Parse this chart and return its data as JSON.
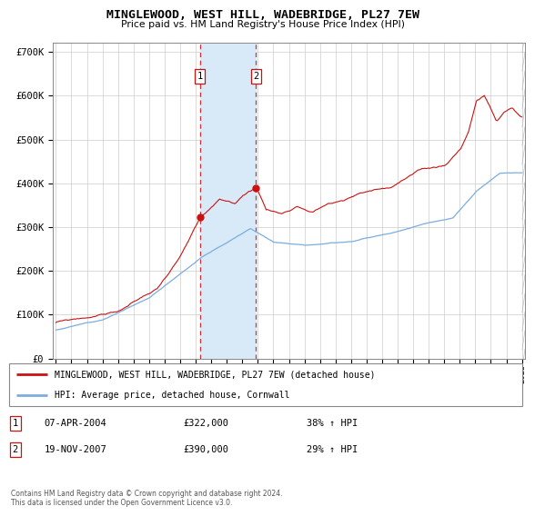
{
  "title": "MINGLEWOOD, WEST HILL, WADEBRIDGE, PL27 7EW",
  "subtitle": "Price paid vs. HM Land Registry's House Price Index (HPI)",
  "legend_line1": "MINGLEWOOD, WEST HILL, WADEBRIDGE, PL27 7EW (detached house)",
  "legend_line2": "HPI: Average price, detached house, Cornwall",
  "sale1_label": "1",
  "sale2_label": "2",
  "sale1_date": "07-APR-2004",
  "sale1_price": 322000,
  "sale1_hpi": "38% ↑ HPI",
  "sale2_date": "19-NOV-2007",
  "sale2_price": 390000,
  "sale2_hpi": "29% ↑ HPI",
  "footer": "Contains HM Land Registry data © Crown copyright and database right 2024.\nThis data is licensed under the Open Government Licence v3.0.",
  "hpi_color": "#7aade0",
  "price_color": "#cc1111",
  "sale_shade_color": "#d8eaf8",
  "ylim": [
    0,
    720000
  ],
  "yticks": [
    0,
    100000,
    200000,
    300000,
    400000,
    500000,
    600000,
    700000
  ],
  "ytick_labels": [
    "£0",
    "£100K",
    "£200K",
    "£300K",
    "£400K",
    "£500K",
    "£600K",
    "£700K"
  ],
  "start_year": 1995,
  "end_year": 2025,
  "sale1_x": 2004.27,
  "sale2_x": 2007.89
}
